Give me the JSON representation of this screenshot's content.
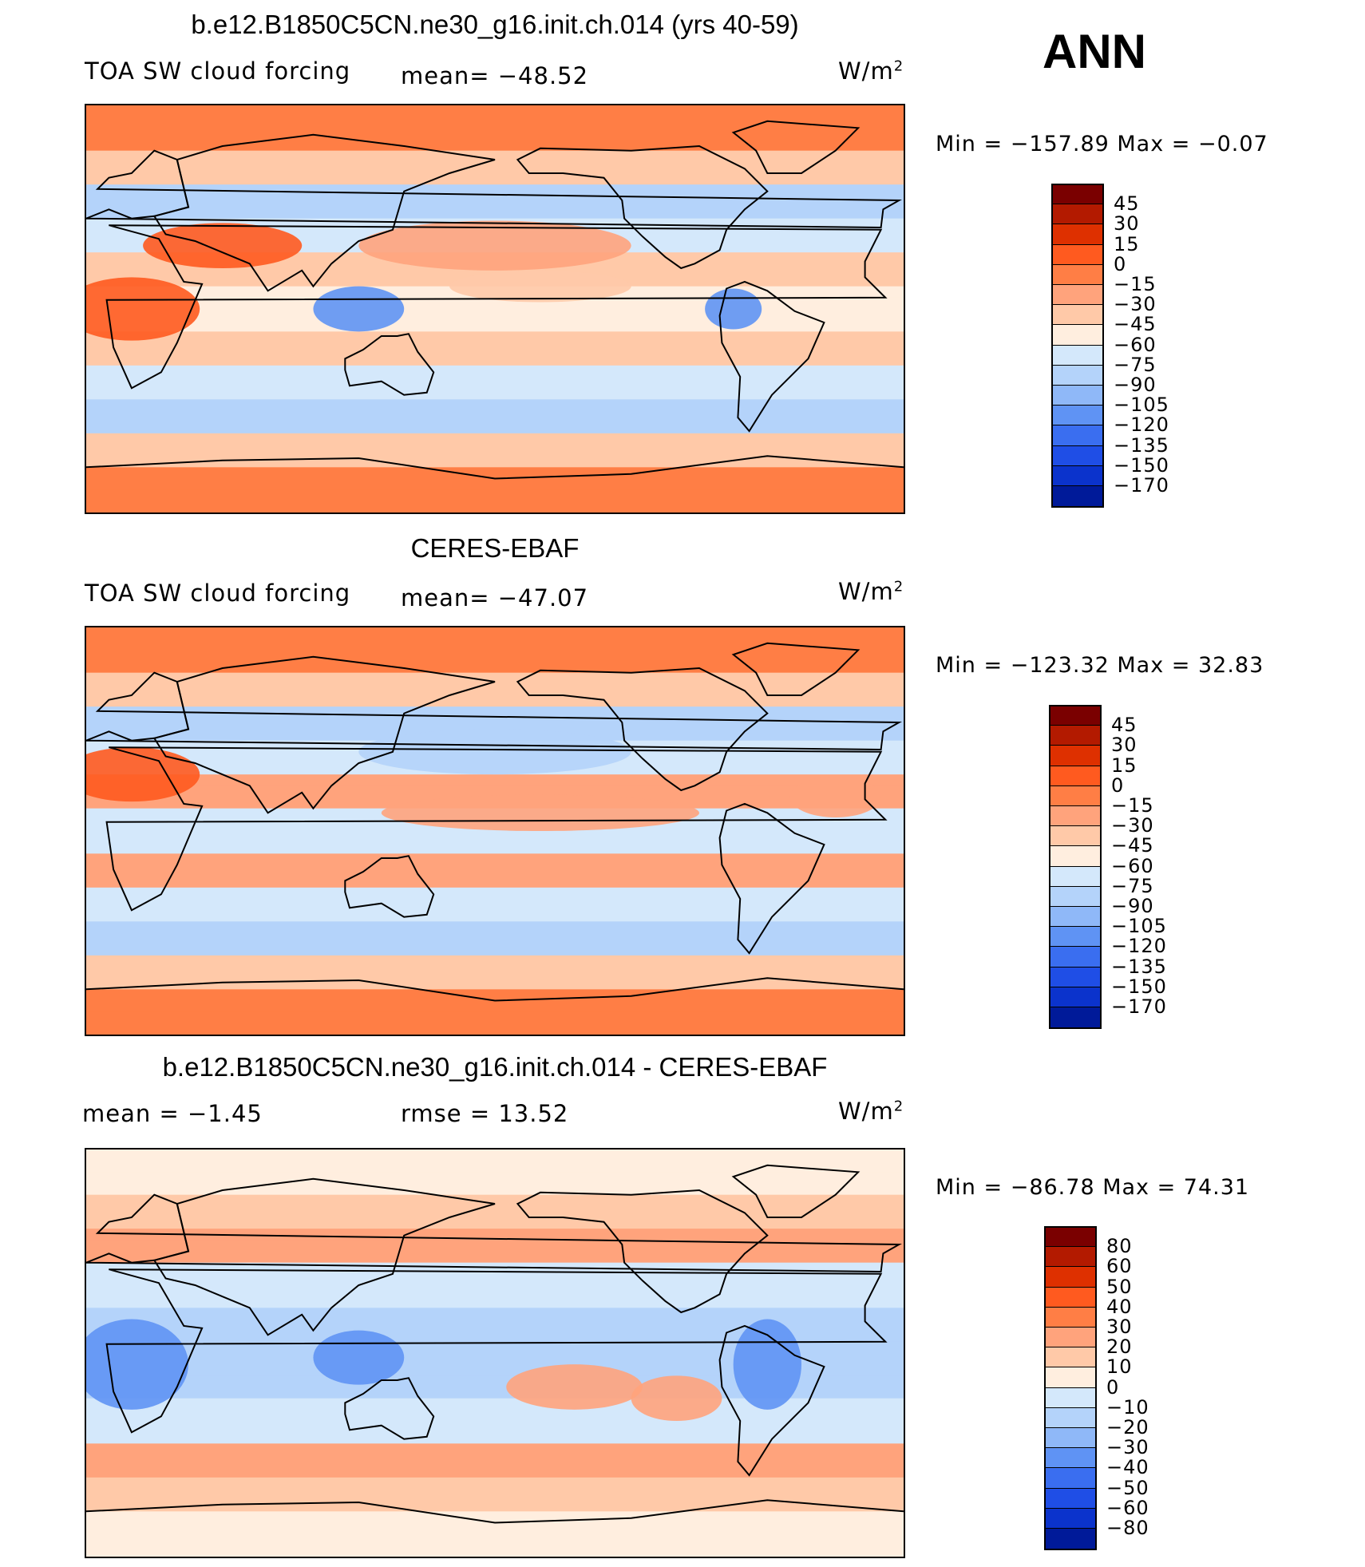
{
  "season": "ANN",
  "panels": [
    {
      "title": "b.e12.B1850C5CN.ne30_g16.init.ch.014 (yrs 40-59)",
      "left_label": "TOA SW cloud forcing",
      "center_label": "mean= −48.52",
      "units": "W/m",
      "units_sup": "2",
      "minmax": "Min = −157.89 Max =  −0.07",
      "map_kind": "model",
      "colorbar": {
        "colors": [
          "#7a0000",
          "#b31a00",
          "#de3000",
          "#ff5a1f",
          "#ff7e45",
          "#ffa37c",
          "#ffc9a8",
          "#ffeedf",
          "#d4e8fb",
          "#b4d3fa",
          "#8fb8f8",
          "#5f93f4",
          "#3a6ef0",
          "#1f4ee6",
          "#0b33cc",
          "#001a99"
        ],
        "labels": [
          "45",
          "30",
          "15",
          "0",
          "−15",
          "−30",
          "−45",
          "−60",
          "−75",
          "−90",
          "−105",
          "−120",
          "−135",
          "−150",
          "−170"
        ]
      }
    },
    {
      "title": "CERES-EBAF",
      "left_label": "TOA SW cloud forcing",
      "center_label": "mean= −47.07",
      "units": "W/m",
      "units_sup": "2",
      "minmax": "Min = −123.32 Max =  32.83",
      "map_kind": "obs",
      "colorbar": {
        "colors": [
          "#7a0000",
          "#b31a00",
          "#de3000",
          "#ff5a1f",
          "#ff7e45",
          "#ffa37c",
          "#ffc9a8",
          "#ffeedf",
          "#d4e8fb",
          "#b4d3fa",
          "#8fb8f8",
          "#5f93f4",
          "#3a6ef0",
          "#1f4ee6",
          "#0b33cc",
          "#001a99"
        ],
        "labels": [
          "45",
          "30",
          "15",
          "0",
          "−15",
          "−30",
          "−45",
          "−60",
          "−75",
          "−90",
          "−105",
          "−120",
          "−135",
          "−150",
          "−170"
        ]
      }
    },
    {
      "title": "b.e12.B1850C5CN.ne30_g16.init.ch.014 - CERES-EBAF",
      "left_label": "mean =  −1.45",
      "center_label": "rmse =  13.52",
      "units": "W/m",
      "units_sup": "2",
      "minmax": "Min = −86.78 Max =  74.31",
      "map_kind": "diff",
      "colorbar": {
        "colors": [
          "#7a0000",
          "#b31a00",
          "#de3000",
          "#ff5a1f",
          "#ff7e45",
          "#ffa37c",
          "#ffc9a8",
          "#ffeedf",
          "#d4e8fb",
          "#b4d3fa",
          "#8fb8f8",
          "#5f93f4",
          "#3a6ef0",
          "#1f4ee6",
          "#0b33cc",
          "#001a99"
        ],
        "labels": [
          "80",
          "60",
          "50",
          "40",
          "30",
          "20",
          "10",
          "0",
          "−10",
          "−20",
          "−30",
          "−40",
          "−50",
          "−60",
          "−80"
        ]
      }
    }
  ]
}
